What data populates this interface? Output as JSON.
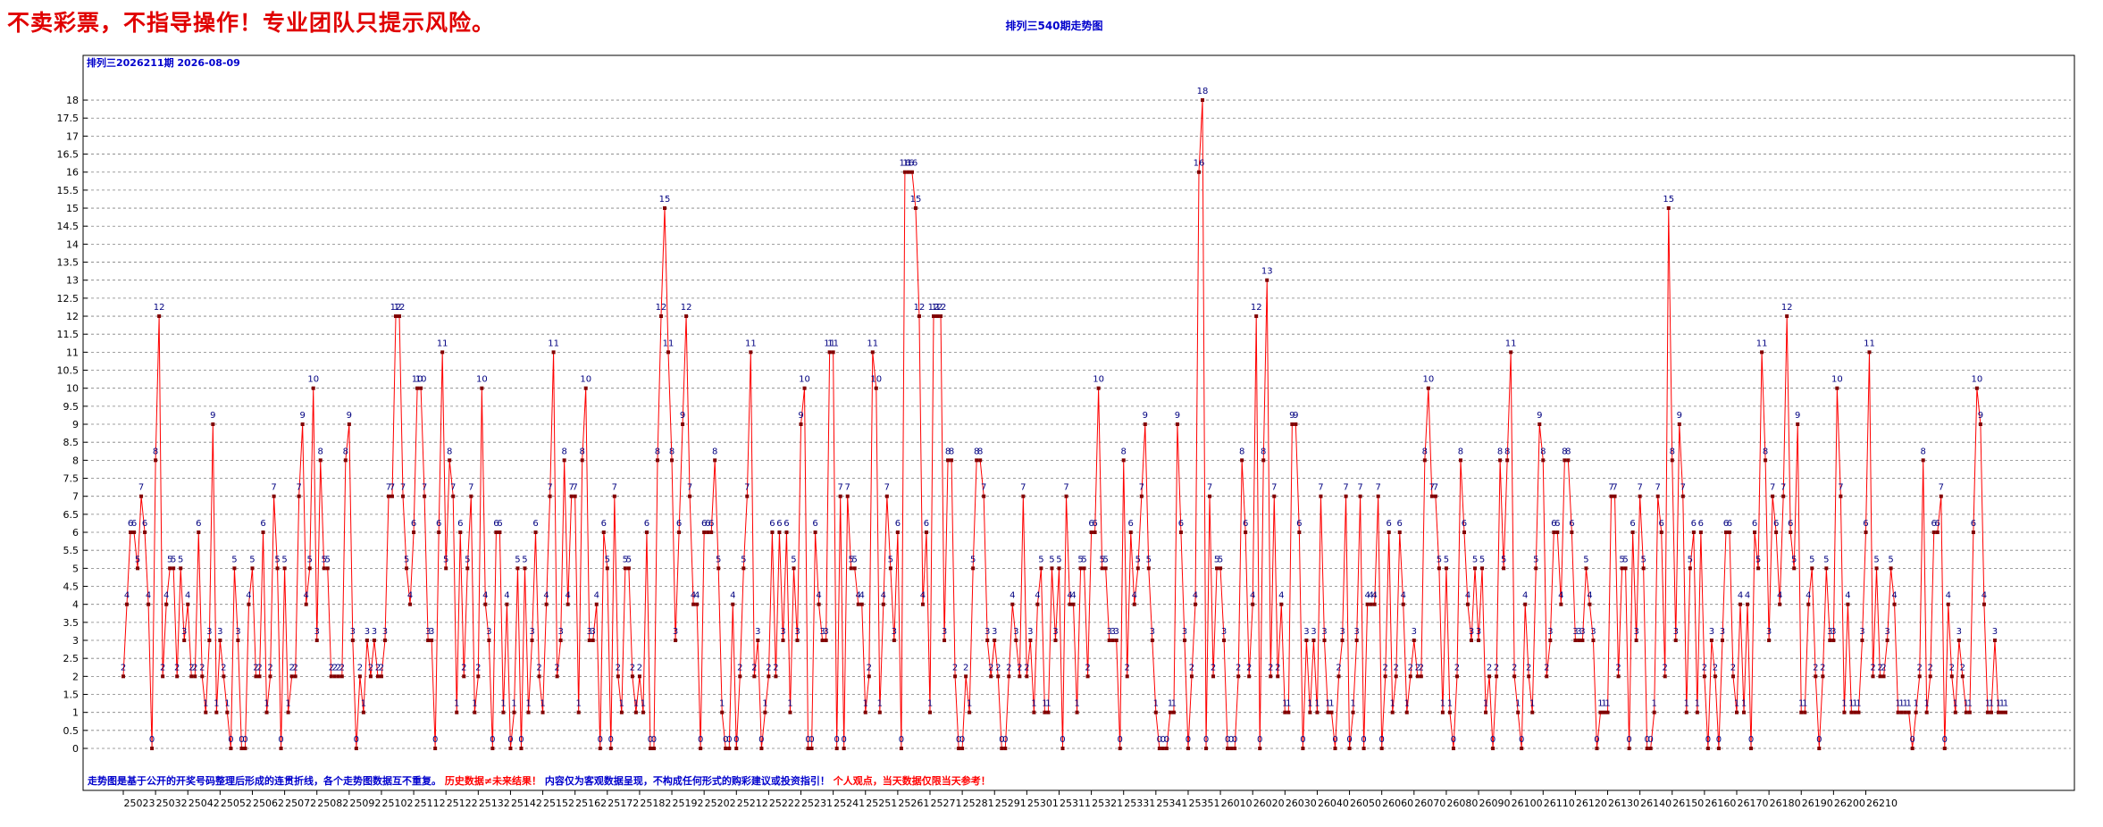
{
  "header": {
    "disclaimer": "不卖彩票，不指导操作！专业团队只提示风险。",
    "chart_title": "排列三540期走势图",
    "corner_info": "排列三2026211期 2026-08-09"
  },
  "footer_note": {
    "part1": "走势图是基于公开的开奖号码整理后形成的连贯折线，各个走势图数据互不重复。",
    "part2": "历史数据≠未来结果！",
    "part3": "内容仅为客观数据呈现，不构成任何形式的购彩建议或投资指引！",
    "part4": "个人观点，当天数据仅限当天参考！"
  },
  "colors": {
    "line": "#ff0000",
    "marker": "#800000",
    "label": "#000080",
    "grid": "#808080",
    "note_blue": "#0000cc",
    "note_red": "#ff0000"
  },
  "chart_data": {
    "type": "line",
    "title": "排列三540期走势图",
    "xlabel": "",
    "ylabel": "",
    "ylim": [
      0,
      18
    ],
    "yticks": [
      "0",
      "0.5",
      "1",
      "1.5",
      "2",
      "2.5",
      "3",
      "3.5",
      "4",
      "4.5",
      "5",
      "5.5",
      "6",
      "6.5",
      "7",
      "7.5",
      "8",
      "8.5",
      "9",
      "9.5",
      "10",
      "10.5",
      "11",
      "11.5",
      "12",
      "12.5",
      "13",
      "13.5",
      "14",
      "14.5",
      "15",
      "15.5",
      "16",
      "16.5",
      "17",
      "17.5",
      "18"
    ],
    "xtick_labels": [
      "25023",
      "25032",
      "25042",
      "25052",
      "25062",
      "25072",
      "25082",
      "25092",
      "25102",
      "25112",
      "25122",
      "25132",
      "25142",
      "25152",
      "25162",
      "25172",
      "25182",
      "25192",
      "25202",
      "25212",
      "25222",
      "25231",
      "25241",
      "25251",
      "25261",
      "25271",
      "25281",
      "25291",
      "25301",
      "25311",
      "25321",
      "25331",
      "25341",
      "25351",
      "26010",
      "26020",
      "26030",
      "26040",
      "26050",
      "26060",
      "26070",
      "26080",
      "26090",
      "26100",
      "26110",
      "26120",
      "26130",
      "26140",
      "26150",
      "26160",
      "26170",
      "26180",
      "26190",
      "26200",
      "26210"
    ],
    "grid": true,
    "series": [
      {
        "values": [
          2,
          4,
          6,
          6,
          5,
          7,
          6,
          4,
          0,
          8,
          12,
          2,
          4,
          5,
          5,
          2,
          5,
          3,
          4,
          2,
          2,
          6,
          2,
          1,
          3,
          9,
          1,
          3,
          2,
          1,
          0,
          5,
          3,
          0,
          0,
          4,
          5,
          2,
          2,
          6,
          1,
          2,
          7,
          5,
          0,
          5,
          1,
          2,
          2,
          7,
          9,
          4,
          5,
          10,
          3,
          8,
          5,
          5,
          2,
          2,
          2,
          2,
          8,
          9,
          3,
          0,
          2,
          1,
          3,
          2,
          3,
          2,
          2,
          3,
          7,
          7,
          12,
          12,
          7,
          5,
          4,
          6,
          10,
          10,
          7,
          3,
          3,
          0,
          6,
          11,
          5,
          8,
          7,
          1,
          6,
          2,
          5,
          7,
          1,
          2,
          10,
          4,
          3,
          0,
          6,
          6,
          1,
          4,
          0,
          1,
          5,
          0,
          5,
          1,
          3,
          6,
          2,
          1,
          4,
          7,
          11,
          2,
          3,
          8,
          4,
          7,
          7,
          1,
          8,
          10,
          3,
          3,
          4,
          0,
          6,
          5,
          0,
          7,
          2,
          1,
          5,
          5,
          2,
          1,
          2,
          1,
          6,
          0,
          0,
          8,
          12,
          15,
          11,
          8,
          3,
          6,
          9,
          12,
          7,
          4,
          4,
          0,
          6,
          6,
          6,
          8,
          5,
          1,
          0,
          0,
          4,
          0,
          2,
          5,
          7,
          11,
          2,
          3,
          0,
          1,
          2,
          6,
          2,
          6,
          3,
          6,
          1,
          5,
          3,
          9,
          10,
          0,
          0,
          6,
          4,
          3,
          3,
          11,
          11,
          0,
          7,
          0,
          7,
          5,
          5,
          4,
          4,
          1,
          2,
          11,
          10,
          1,
          4,
          7,
          5,
          3,
          6,
          0,
          16,
          16,
          16,
          15,
          12,
          4,
          6,
          1,
          12,
          12,
          12,
          3,
          8,
          8,
          2,
          0,
          0,
          2,
          1,
          5,
          8,
          8,
          7,
          3,
          2,
          3,
          2,
          0,
          0,
          2,
          4,
          3,
          2,
          7,
          2,
          3,
          1,
          4,
          5,
          1,
          1,
          5,
          3,
          5,
          0,
          7,
          4,
          4,
          1,
          5,
          5,
          2,
          6,
          6,
          10,
          5,
          5,
          3,
          3,
          3,
          0,
          8,
          2,
          6,
          4,
          5,
          7,
          9,
          5,
          3,
          1,
          0,
          0,
          0,
          1,
          1,
          9,
          6,
          3,
          0,
          2,
          4,
          16,
          18,
          0,
          7,
          2,
          5,
          5,
          3,
          0,
          0,
          0,
          2,
          8,
          6,
          2,
          4,
          12,
          0,
          8,
          13,
          2,
          7,
          2,
          4,
          1,
          1,
          9,
          9,
          6,
          0,
          3,
          1,
          3,
          1,
          7,
          3,
          1,
          1,
          0,
          2,
          3,
          7,
          0,
          1,
          3,
          7,
          0,
          4,
          4,
          4,
          7,
          0,
          2,
          6,
          1,
          2,
          6,
          4,
          1,
          2,
          3,
          2,
          2,
          8,
          10,
          7,
          7,
          5,
          1,
          5,
          1,
          0,
          2,
          8,
          6,
          4,
          3,
          5,
          3,
          5,
          1,
          2,
          0,
          2,
          8,
          5,
          8,
          11,
          2,
          1,
          0,
          4,
          2,
          1,
          5,
          9,
          8,
          2,
          3,
          6,
          6,
          4,
          8,
          8,
          6,
          3,
          3,
          3,
          5,
          4,
          3,
          0,
          1,
          1,
          1,
          7,
          7,
          2,
          5,
          5,
          0,
          6,
          3,
          7,
          5,
          0,
          0,
          1,
          7,
          6,
          2,
          15,
          8,
          3,
          9,
          7,
          1,
          5,
          6,
          1,
          6,
          2,
          0,
          3,
          2,
          0,
          3,
          6,
          6,
          2,
          1,
          4,
          1,
          4,
          0,
          6,
          5,
          11,
          8,
          3,
          7,
          6,
          4,
          7,
          12,
          6,
          5,
          9,
          1,
          1,
          4,
          5,
          2,
          0,
          2,
          5,
          3,
          3,
          10,
          7,
          1,
          4,
          1,
          1,
          1,
          3,
          6,
          11,
          2,
          5,
          2,
          2,
          3,
          5,
          4,
          1,
          1,
          1,
          1,
          0,
          1,
          2,
          8,
          1,
          2,
          6,
          6,
          7,
          0,
          4,
          2,
          1,
          3,
          2,
          1,
          1,
          6,
          10,
          9,
          4,
          1,
          1,
          3,
          1,
          1,
          1
        ]
      }
    ]
  }
}
